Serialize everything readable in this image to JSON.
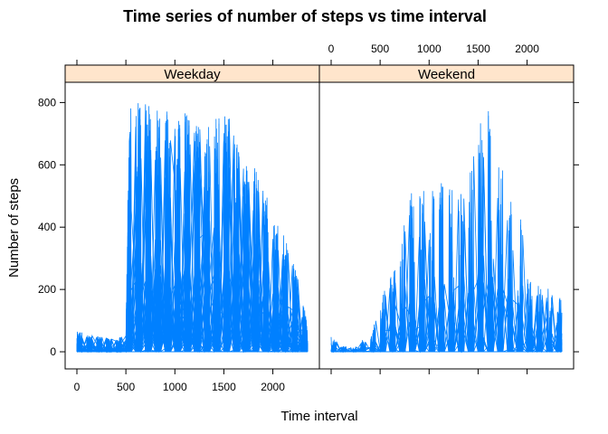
{
  "chart_data": {
    "type": "line",
    "title": "Time series of number of steps vs time interval",
    "xlabel": "Time interval",
    "ylabel": "Number of steps",
    "xlim": [
      -120,
      2475
    ],
    "ylim": [
      -55,
      865
    ],
    "x_ticks": [
      0,
      500,
      1000,
      1500,
      2000
    ],
    "x_tick_labels": [
      "0",
      "500",
      "1000",
      "1500",
      "2000"
    ],
    "y_ticks": [
      0,
      200,
      400,
      600,
      800
    ],
    "y_tick_labels": [
      "0",
      "200",
      "400",
      "600",
      "800"
    ],
    "layout": "lattice xyplot, 2 panels side by side, x labels alternate bottom (left panel) and top (right panel), y labels on left",
    "line_color": "#0080ff",
    "strip_color": "#ffe5cc",
    "grid": false,
    "panels": [
      {
        "name": "Weekday",
        "x_range": [
          0,
          2355
        ],
        "activity_profile": {
          "interval": [
            0,
            100,
            200,
            300,
            400,
            500,
            530,
            600,
            700,
            800,
            830,
            900,
            1000,
            1100,
            1200,
            1300,
            1400,
            1500,
            1600,
            1700,
            1800,
            1900,
            2000,
            2100,
            2200,
            2300,
            2355
          ],
          "max_steps": [
            72,
            55,
            50,
            45,
            40,
            60,
            780,
            806,
            795,
            790,
            806,
            800,
            720,
            785,
            740,
            720,
            760,
            760,
            740,
            600,
            600,
            550,
            440,
            400,
            300,
            180,
            80
          ]
        }
      },
      {
        "name": "Weekend",
        "x_range": [
          0,
          2355
        ],
        "activity_profile": {
          "interval": [
            0,
            100,
            200,
            300,
            400,
            500,
            600,
            700,
            800,
            900,
            1000,
            1100,
            1200,
            1300,
            1400,
            1500,
            1600,
            1700,
            1800,
            1900,
            2000,
            2100,
            2200,
            2300,
            2355
          ],
          "max_steps": [
            52,
            20,
            15,
            40,
            40,
            160,
            260,
            320,
            550,
            540,
            530,
            540,
            560,
            540,
            580,
            760,
            785,
            690,
            550,
            540,
            240,
            220,
            210,
            180,
            170
          ]
        }
      }
    ]
  }
}
